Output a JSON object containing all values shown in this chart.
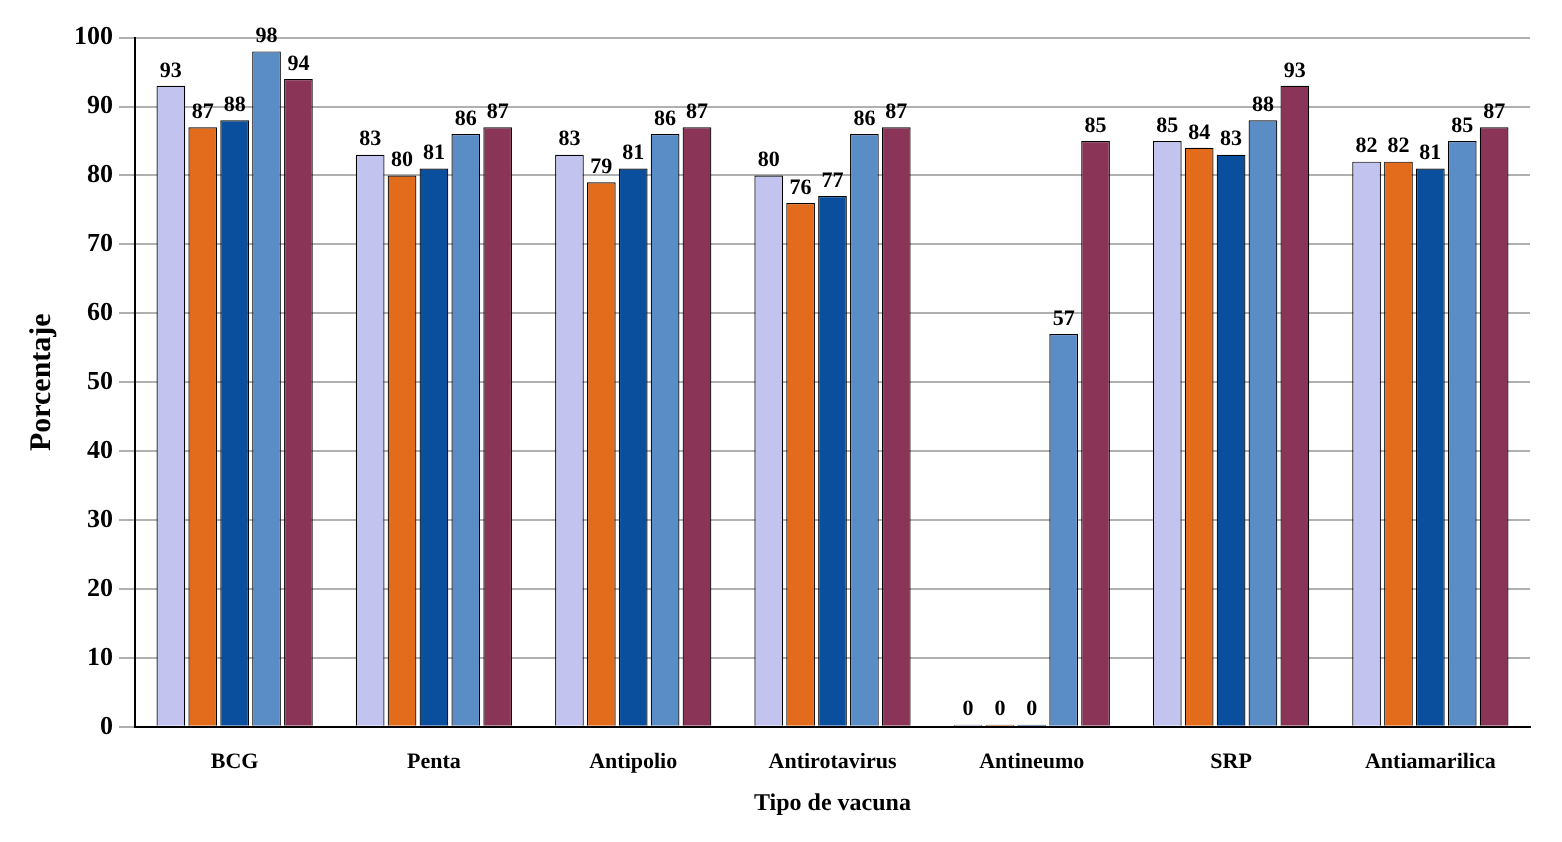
{
  "chart_data": {
    "type": "bar",
    "xlabel": "Tipo de vacuna",
    "ylabel": "Porcentaje",
    "categories": [
      "BCG",
      "Penta",
      "Antipolio",
      "Antirotavirus",
      "Antineumo",
      "SRP",
      "Antiamarilica"
    ],
    "series": [
      {
        "color": "#c3c3f0",
        "values": [
          93,
          83,
          83,
          80,
          0,
          85,
          82
        ]
      },
      {
        "color": "#e26b1c",
        "values": [
          87,
          80,
          79,
          76,
          0,
          84,
          82
        ]
      },
      {
        "color": "#0a4f9e",
        "values": [
          88,
          81,
          81,
          77,
          0,
          83,
          81
        ]
      },
      {
        "color": "#5a8dc6",
        "values": [
          98,
          86,
          86,
          86,
          57,
          88,
          85
        ]
      },
      {
        "color": "#8a3558",
        "values": [
          94,
          87,
          87,
          87,
          85,
          93,
          87
        ]
      }
    ],
    "ylim": [
      0,
      100
    ],
    "yticks": [
      0,
      10,
      20,
      30,
      40,
      50,
      60,
      70,
      80,
      90,
      100
    ],
    "grid": "y",
    "data_labels": true
  }
}
